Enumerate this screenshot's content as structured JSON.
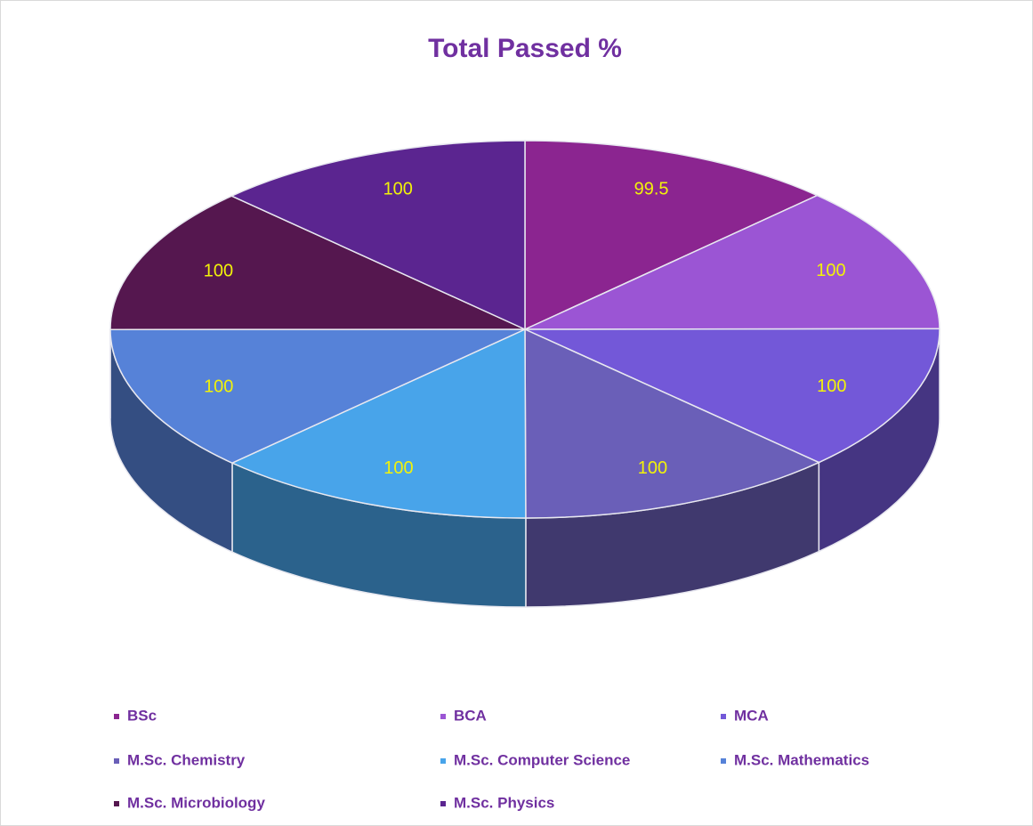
{
  "chart_data": {
    "type": "pie",
    "title": "Total Passed %",
    "categories": [
      "BSc",
      "BCA",
      "MCA",
      "M.Sc. Chemistry",
      "M.Sc. Computer Science",
      "M.Sc. Mathematics",
      "M.Sc. Microbiology",
      "M.Sc. Physics"
    ],
    "values": [
      99.5,
      100,
      100,
      100,
      100,
      100,
      100,
      100
    ],
    "colors": [
      "#8b2590",
      "#9b55d4",
      "#7358d8",
      "#6a5fb8",
      "#48a4ea",
      "#5682d8",
      "#55174f",
      "#5b2590"
    ],
    "legend": "bottom"
  }
}
